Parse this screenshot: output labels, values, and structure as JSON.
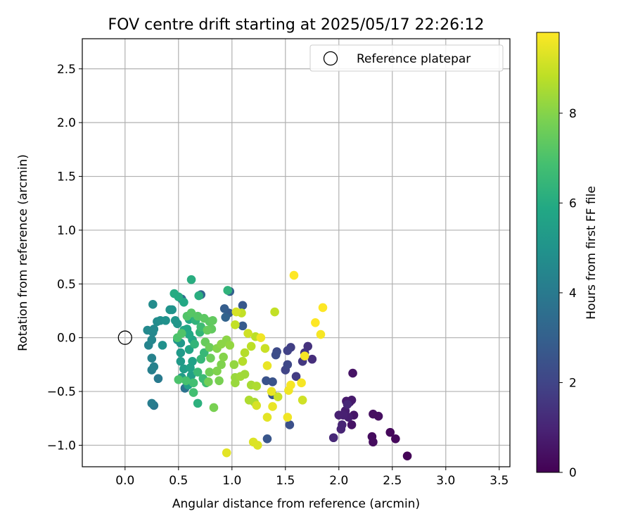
{
  "chart_data": {
    "type": "scatter",
    "title": "FOV centre drift starting at 2025/05/17 22:26:12",
    "xlabel": "Angular distance from reference (arcmin)",
    "ylabel": "Rotation from reference (arcmin)",
    "xlim": [
      -0.4,
      3.6
    ],
    "ylim": [
      -1.2,
      2.78
    ],
    "xticks": [
      "0.0",
      "0.5",
      "1.0",
      "1.5",
      "2.0",
      "2.5",
      "3.0",
      "3.5"
    ],
    "yticks": [
      "−1.0",
      "−0.5",
      "0.0",
      "0.5",
      "1.0",
      "1.5",
      "2.0",
      "2.5"
    ],
    "grid": true,
    "legend": {
      "placement": "top-right",
      "entries": [
        "Reference platepar"
      ]
    },
    "reference_point": {
      "x": 0.0,
      "y": 0.0
    },
    "colorbar": {
      "label": "Hours from first FF file",
      "colormap": "viridis",
      "range": [
        0,
        9.8
      ],
      "ticks": [
        "0",
        "2",
        "4",
        "6",
        "8"
      ]
    },
    "points": [
      {
        "x": 2.64,
        "y": -1.1,
        "c": 0.1
      },
      {
        "x": 2.53,
        "y": -0.94,
        "c": 0.2
      },
      {
        "x": 2.48,
        "y": -0.88,
        "c": 0.2
      },
      {
        "x": 2.32,
        "y": -0.97,
        "c": 0.3
      },
      {
        "x": 2.31,
        "y": -0.92,
        "c": 0.3
      },
      {
        "x": 2.32,
        "y": -0.71,
        "c": 0.4
      },
      {
        "x": 2.37,
        "y": -0.73,
        "c": 0.4
      },
      {
        "x": 2.13,
        "y": -0.33,
        "c": 0.5
      },
      {
        "x": 2.12,
        "y": -0.81,
        "c": 0.5
      },
      {
        "x": 2.14,
        "y": -0.72,
        "c": 0.6
      },
      {
        "x": 2.1,
        "y": -0.6,
        "c": 0.6
      },
      {
        "x": 2.07,
        "y": -0.59,
        "c": 0.7
      },
      {
        "x": 2.12,
        "y": -0.58,
        "c": 0.7
      },
      {
        "x": 2.06,
        "y": -0.68,
        "c": 0.8
      },
      {
        "x": 2.09,
        "y": -0.74,
        "c": 0.8
      },
      {
        "x": 2.04,
        "y": -0.72,
        "c": 0.9
      },
      {
        "x": 2.0,
        "y": -0.72,
        "c": 0.9
      },
      {
        "x": 2.02,
        "y": -0.85,
        "c": 1.0
      },
      {
        "x": 2.03,
        "y": -0.81,
        "c": 1.0
      },
      {
        "x": 1.95,
        "y": -0.93,
        "c": 1.1
      },
      {
        "x": 2.08,
        "y": -0.62,
        "c": 1.1
      },
      {
        "x": 1.75,
        "y": -0.2,
        "c": 1.3
      },
      {
        "x": 1.71,
        "y": -0.08,
        "c": 1.4
      },
      {
        "x": 1.68,
        "y": -0.14,
        "c": 1.5
      },
      {
        "x": 1.66,
        "y": -0.22,
        "c": 1.6
      },
      {
        "x": 1.6,
        "y": -0.36,
        "c": 1.7
      },
      {
        "x": 1.55,
        "y": -0.09,
        "c": 1.8
      },
      {
        "x": 1.52,
        "y": -0.12,
        "c": 1.9
      },
      {
        "x": 1.5,
        "y": -0.3,
        "c": 2.0
      },
      {
        "x": 1.52,
        "y": -0.25,
        "c": 2.1
      },
      {
        "x": 1.42,
        "y": -0.13,
        "c": 2.2
      },
      {
        "x": 1.41,
        "y": -0.16,
        "c": 2.3
      },
      {
        "x": 1.54,
        "y": -0.81,
        "c": 2.4
      },
      {
        "x": 1.38,
        "y": -0.41,
        "c": 2.5
      },
      {
        "x": 1.32,
        "y": -0.4,
        "c": 2.5
      },
      {
        "x": 1.33,
        "y": -0.94,
        "c": 2.6
      },
      {
        "x": 1.38,
        "y": -0.53,
        "c": 2.6
      },
      {
        "x": 1.1,
        "y": 0.3,
        "c": 2.7
      },
      {
        "x": 1.1,
        "y": 0.11,
        "c": 2.8
      },
      {
        "x": 0.97,
        "y": 0.23,
        "c": 2.8
      },
      {
        "x": 0.93,
        "y": 0.27,
        "c": 2.9
      },
      {
        "x": 0.98,
        "y": 0.43,
        "c": 3.0
      },
      {
        "x": 0.94,
        "y": 0.19,
        "c": 3.1
      },
      {
        "x": 0.71,
        "y": 0.4,
        "c": 3.2
      },
      {
        "x": 0.53,
        "y": 0.36,
        "c": 3.5
      },
      {
        "x": 0.56,
        "y": -0.47,
        "c": 3.7
      },
      {
        "x": 0.27,
        "y": -0.63,
        "c": 3.9
      },
      {
        "x": 0.31,
        "y": -0.38,
        "c": 4.0
      },
      {
        "x": 0.25,
        "y": -0.61,
        "c": 4.1
      },
      {
        "x": 0.25,
        "y": -0.3,
        "c": 4.2
      },
      {
        "x": 0.25,
        "y": -0.19,
        "c": 4.3
      },
      {
        "x": 0.27,
        "y": -0.27,
        "c": 4.3
      },
      {
        "x": 0.22,
        "y": -0.07,
        "c": 4.4
      },
      {
        "x": 0.25,
        "y": -0.02,
        "c": 4.5
      },
      {
        "x": 0.26,
        "y": 0.05,
        "c": 4.5
      },
      {
        "x": 0.27,
        "y": 0.08,
        "c": 4.6
      },
      {
        "x": 0.21,
        "y": 0.07,
        "c": 4.6
      },
      {
        "x": 0.3,
        "y": 0.15,
        "c": 4.7
      },
      {
        "x": 0.26,
        "y": 0.31,
        "c": 4.7
      },
      {
        "x": 0.33,
        "y": 0.16,
        "c": 4.8
      },
      {
        "x": 0.38,
        "y": 0.16,
        "c": 4.9
      },
      {
        "x": 0.35,
        "y": -0.07,
        "c": 4.9
      },
      {
        "x": 0.42,
        "y": 0.26,
        "c": 5.0
      },
      {
        "x": 0.44,
        "y": 0.26,
        "c": 5.0
      },
      {
        "x": 0.47,
        "y": 0.16,
        "c": 5.1
      },
      {
        "x": 0.49,
        "y": 0.13,
        "c": 5.1
      },
      {
        "x": 0.49,
        "y": -0.02,
        "c": 5.2
      },
      {
        "x": 0.52,
        "y": -0.05,
        "c": 5.2
      },
      {
        "x": 0.52,
        "y": -0.14,
        "c": 5.3
      },
      {
        "x": 0.52,
        "y": -0.22,
        "c": 5.3
      },
      {
        "x": 0.55,
        "y": -0.29,
        "c": 5.4
      },
      {
        "x": 0.53,
        "y": -0.37,
        "c": 5.4
      },
      {
        "x": 0.59,
        "y": -0.44,
        "c": 5.5
      },
      {
        "x": 0.62,
        "y": -0.35,
        "c": 5.5
      },
      {
        "x": 0.61,
        "y": -0.28,
        "c": 5.6
      },
      {
        "x": 0.63,
        "y": -0.22,
        "c": 5.6
      },
      {
        "x": 0.6,
        "y": -0.11,
        "c": 5.7
      },
      {
        "x": 0.63,
        "y": -0.02,
        "c": 5.7
      },
      {
        "x": 0.58,
        "y": 0.08,
        "c": 5.8
      },
      {
        "x": 0.55,
        "y": 0.07,
        "c": 5.8
      },
      {
        "x": 0.6,
        "y": 0.17,
        "c": 5.9
      },
      {
        "x": 0.55,
        "y": 0.33,
        "c": 5.9
      },
      {
        "x": 0.6,
        "y": 0.03,
        "c": 5.9
      },
      {
        "x": 0.46,
        "y": 0.41,
        "c": 6.0
      },
      {
        "x": 0.5,
        "y": 0.38,
        "c": 6.0
      },
      {
        "x": 0.62,
        "y": 0.54,
        "c": 6.1
      },
      {
        "x": 0.69,
        "y": 0.39,
        "c": 6.1
      },
      {
        "x": 0.68,
        "y": -0.61,
        "c": 6.2
      },
      {
        "x": 0.96,
        "y": 0.44,
        "c": 6.3
      },
      {
        "x": 0.66,
        "y": 0.16,
        "c": 6.3
      },
      {
        "x": 0.65,
        "y": -0.06,
        "c": 6.4
      },
      {
        "x": 0.7,
        "y": 0.05,
        "c": 6.4
      },
      {
        "x": 0.74,
        "y": -0.14,
        "c": 6.5
      },
      {
        "x": 0.71,
        "y": -0.2,
        "c": 6.5
      },
      {
        "x": 0.68,
        "y": -0.32,
        "c": 6.6
      },
      {
        "x": 0.73,
        "y": -0.38,
        "c": 6.6
      },
      {
        "x": 0.76,
        "y": -0.42,
        "c": 6.7
      },
      {
        "x": 0.71,
        "y": 0.1,
        "c": 6.7
      },
      {
        "x": 0.64,
        "y": -0.42,
        "c": 6.8
      },
      {
        "x": 0.64,
        "y": -0.51,
        "c": 6.8
      },
      {
        "x": 0.57,
        "y": -0.4,
        "c": 6.9
      },
      {
        "x": 0.5,
        "y": -0.39,
        "c": 7.0
      },
      {
        "x": 0.49,
        "y": 0.0,
        "c": 7.0
      },
      {
        "x": 0.53,
        "y": 0.04,
        "c": 7.1
      },
      {
        "x": 0.58,
        "y": 0.2,
        "c": 7.1
      },
      {
        "x": 0.62,
        "y": 0.23,
        "c": 7.2
      },
      {
        "x": 0.68,
        "y": 0.2,
        "c": 7.2
      },
      {
        "x": 0.74,
        "y": 0.18,
        "c": 7.3
      },
      {
        "x": 0.79,
        "y": 0.15,
        "c": 7.3
      },
      {
        "x": 0.82,
        "y": 0.16,
        "c": 7.4
      },
      {
        "x": 0.81,
        "y": 0.08,
        "c": 7.4
      },
      {
        "x": 0.77,
        "y": 0.07,
        "c": 7.5
      },
      {
        "x": 0.75,
        "y": -0.04,
        "c": 7.5
      },
      {
        "x": 0.79,
        "y": -0.09,
        "c": 7.6
      },
      {
        "x": 0.8,
        "y": -0.19,
        "c": 7.6
      },
      {
        "x": 0.79,
        "y": -0.32,
        "c": 7.7
      },
      {
        "x": 0.78,
        "y": -0.41,
        "c": 7.7
      },
      {
        "x": 0.83,
        "y": -0.65,
        "c": 7.8
      },
      {
        "x": 0.88,
        "y": -0.4,
        "c": 7.8
      },
      {
        "x": 0.86,
        "y": -0.31,
        "c": 7.9
      },
      {
        "x": 0.9,
        "y": -0.25,
        "c": 7.9
      },
      {
        "x": 0.92,
        "y": -0.18,
        "c": 8.0
      },
      {
        "x": 0.86,
        "y": -0.1,
        "c": 8.0
      },
      {
        "x": 0.9,
        "y": -0.06,
        "c": 8.1
      },
      {
        "x": 0.95,
        "y": -0.02,
        "c": 8.1
      },
      {
        "x": 0.98,
        "y": -0.07,
        "c": 8.2
      },
      {
        "x": 1.02,
        "y": -0.25,
        "c": 8.2
      },
      {
        "x": 1.03,
        "y": -0.37,
        "c": 8.3
      },
      {
        "x": 1.03,
        "y": -0.42,
        "c": 8.3
      },
      {
        "x": 1.08,
        "y": -0.36,
        "c": 8.4
      },
      {
        "x": 1.12,
        "y": -0.34,
        "c": 8.4
      },
      {
        "x": 1.18,
        "y": -0.44,
        "c": 8.5
      },
      {
        "x": 1.21,
        "y": -0.6,
        "c": 8.5
      },
      {
        "x": 1.16,
        "y": -0.58,
        "c": 8.6
      },
      {
        "x": 1.23,
        "y": -0.45,
        "c": 8.6
      },
      {
        "x": 1.1,
        "y": -0.22,
        "c": 8.7
      },
      {
        "x": 1.12,
        "y": -0.14,
        "c": 8.7
      },
      {
        "x": 1.18,
        "y": -0.08,
        "c": 8.8
      },
      {
        "x": 1.22,
        "y": 0.01,
        "c": 8.8
      },
      {
        "x": 1.03,
        "y": 0.12,
        "c": 8.9
      },
      {
        "x": 1.09,
        "y": 0.23,
        "c": 8.9
      },
      {
        "x": 1.4,
        "y": 0.24,
        "c": 8.9
      },
      {
        "x": 1.31,
        "y": -0.1,
        "c": 9.0
      },
      {
        "x": 1.43,
        "y": -0.55,
        "c": 9.0
      },
      {
        "x": 1.66,
        "y": -0.58,
        "c": 9.1
      },
      {
        "x": 1.15,
        "y": 0.04,
        "c": 9.1
      },
      {
        "x": 1.04,
        "y": 0.24,
        "c": 9.2
      },
      {
        "x": 1.23,
        "y": -0.63,
        "c": 9.2
      },
      {
        "x": 1.2,
        "y": -0.97,
        "c": 9.3
      },
      {
        "x": 1.24,
        "y": -1.0,
        "c": 9.3
      },
      {
        "x": 0.95,
        "y": -1.07,
        "c": 9.4
      },
      {
        "x": 1.33,
        "y": -0.74,
        "c": 9.4
      },
      {
        "x": 1.38,
        "y": -0.64,
        "c": 9.5
      },
      {
        "x": 1.37,
        "y": -0.5,
        "c": 9.5
      },
      {
        "x": 1.33,
        "y": -0.26,
        "c": 9.5
      },
      {
        "x": 1.27,
        "y": 0.0,
        "c": 9.6
      },
      {
        "x": 1.52,
        "y": -0.74,
        "c": 9.6
      },
      {
        "x": 1.53,
        "y": -0.49,
        "c": 9.6
      },
      {
        "x": 1.55,
        "y": -0.44,
        "c": 9.7
      },
      {
        "x": 1.65,
        "y": -0.42,
        "c": 9.7
      },
      {
        "x": 1.68,
        "y": -0.17,
        "c": 9.7
      },
      {
        "x": 1.83,
        "y": 0.03,
        "c": 9.7
      },
      {
        "x": 1.78,
        "y": 0.14,
        "c": 9.8
      },
      {
        "x": 1.85,
        "y": 0.28,
        "c": 9.8
      },
      {
        "x": 1.58,
        "y": 0.58,
        "c": 9.8
      }
    ]
  }
}
